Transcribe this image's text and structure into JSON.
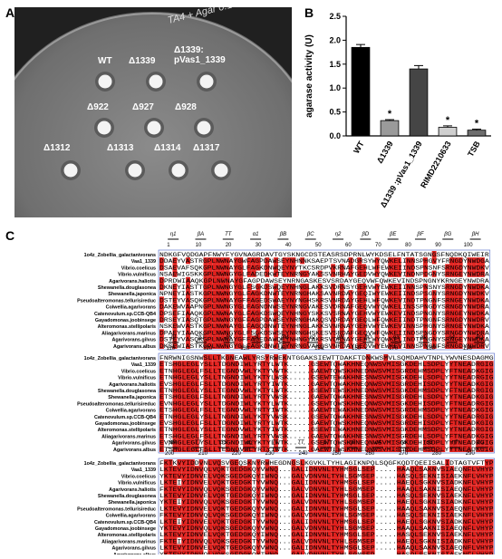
{
  "panels": {
    "a": "A",
    "b": "B",
    "c": "C"
  },
  "plate": {
    "handwriting": "TA4 + Agar 0.1% ...",
    "labels": [
      "WT",
      "Δ1339",
      "Δ1339:\npVas1_1339",
      "Δ922",
      "Δ927",
      "Δ928",
      "Δ1312",
      "Δ1313",
      "Δ1314",
      "Δ1317"
    ]
  },
  "chart_data": {
    "type": "bar",
    "categories": [
      "WT",
      "Δ1339",
      "Δ1339 :pVas1_1339",
      "RIMD2210633",
      "TSB"
    ],
    "values": [
      1.85,
      0.32,
      1.4,
      0.18,
      0.12
    ],
    "errors": [
      0.06,
      0.02,
      0.07,
      0.03,
      0.02
    ],
    "colors": [
      "#000000",
      "#9a9a9a",
      "#454545",
      "#cfcfcf",
      "#6e6e6e"
    ],
    "significance": [
      "",
      "*",
      "",
      "*",
      "*"
    ],
    "ylabel": "agarase activity (U)",
    "ylim": [
      0,
      2.5
    ],
    "yticks": [
      "0.0",
      "0.5",
      "1.0",
      "1.5",
      "2.0",
      "2.5"
    ]
  },
  "alignment": {
    "species": [
      "1o4z_Zobellia_galactanivorans",
      "Vaa1_1339",
      "Vibrio.coelicus",
      "Vibrio.vulnificus",
      "Agarivorans.haliotis",
      "Shewanella.douglasonea",
      "Shewanella.japonica",
      "Pseudoalteromonas.tellurisireduc",
      "Colwellia.agarivorans",
      "Catenovulum.sp.CCB-QB4",
      "Gayadomonas.joobinsege",
      "Alteromonas.stellipolaris",
      "Aliagarivorans.marinus",
      "Agarivorans.gilvus",
      "Agarivorans.albus"
    ],
    "blocks": [
      {
        "ruler": [
          "1",
          "10",
          "20",
          "30",
          "40",
          "50",
          "60",
          "70",
          "80",
          "90",
          "100"
        ],
        "ss": [
          "η1",
          "βA",
          "TT",
          "α1",
          "βB",
          "βC",
          "η2",
          "βD",
          "βE",
          "βF",
          "βG",
          "βH"
        ],
        "rows": [
          "NDKGFVQDGAPFNWYFYGVNAGRDAVTGYSKNGCDSTEASRSDPRNLWYKDSELFNTATSGNGSFNQDKQIWEIR",
          "DDAEYVASTRGPLNWNAYGWFAGPDAWSEYNHNNKSAEPTSVNADGRSYWYQWKELINNSPHGVYFRNGDYNWDGA",
          "DSAEVAFSQKGPLNWNAYGLFAGKDNWQEYNYTKCSRDPVKRNAFGEHLWFEWKEIINDSPNSNFSRNGDYNWDKV",
          "NSAEWIGSKKGPLNWNGYGLFADEDKWTEYNRNGYAKSSVNRHAYGEDVWYQWKEVINDNPDGNYSRNGEYNWDRA",
          "DPRDWIAAQKGPLNWNAYGFAGPDAWSEYNRNGASKESVSRDAYGEQVWFQWKEVINDSPNGNYKRNGEYNWDRA",
          "DKNEYIASTTGPLNWNGYGLFSGKDSWQEYNHNGLAKKSVDRNSYGEHVWYEWKEIINNSPNSNYSRNGDYNWDKA",
          "NPNEYIASTKGPLNWNGYGLFAGKDNWTEYNRNGHAKSAVNRDAYGEQIWYEWKEIINDSPSGNYSRNGDYNWDKV",
          "DSTEYVASQKGPLNWNAYGFFAGEDSWAEYNYNGHSKRSVNRDAYGEHLWFQWKEVINDTPNGNFSRNGEYNWDKA",
          "DAKEWVAAPNGPLNWNGYGLFAGNDNWSEYNRNGVAKESVDRNAFGEQVWYQWKELINSSPNGDYSRNGDYNWDRA",
          "DPSEFIAAQKGPLNWNAYGLFAGKDSWQEYNHNGYSKKSVSRNAYGEHVWYEWKEVINDSPNGNYSRNGEYNWDKA",
          "DRSEYIASQTGPLNWNGYGFFAGPDAWSEYNRNGHAKQSVDRDAYGEQLWFQWKEIINDTPNGNFSRNGDYNWDRV",
          "NSKEWVASTKGPLNWNAYGLFAGQDNWTEYNHNGLAKKSVNRNAYGEHVWYEWKEVINNSPHGNYSRNGEYNWDKA",
          "DPAEYIAAQKGPLNWNGYGLFSGKDSWSEYNRNGHSKESVSRDAFGEQVWFQWKEIINDSPNGDYSRNGDYNWDRA",
          "DSTEYVASQKGPLNWNAYGFFAGEDAWQEYNHNGYAKRSVDRNAYGEHLWYQWKELINDTPNGNYSRNGEYNWDKA",
          "DKSEWIASTKGPLNWNGYGLFAGKDNWTEYNRNGVAKQSVNRDAYGEQVWYEWKEVINNSPNGNFSRNGDYNWDRV"
        ]
      },
      {
        "ruler": [
          "110",
          "120",
          "130",
          "140",
          "150",
          "160",
          "170",
          "180",
          "190"
        ],
        "ss": [
          "βI",
          "βJ",
          "βK",
          "βL",
          "βM",
          "α2",
          "βN",
          "βO",
          "η3",
          "βP",
          "η4",
          "βQ"
        ],
        "rows": [
          "FNRWNIGSNWSLLTKGNEAWLYRSYRWEKNTGGAKSIEWTTDAKFTDNKWSMVLSQMDAHVTNPLYWVNESDAGMG",
          "ETSHGLEGLYSLLTDGNDIWLYRTYLWTK.....GSEWTQWAKHNEQNWSVMISGKDEHLSDPLYYTNEADRGIG",
          "ETNHGLEGLFSLLTEGNDVWLYKTYVWTK.....GAEWTQWSKHNEDNWSVMISGRDEHMSDPLYFTNEADKGIG",
          "ETNHGLEGLYSLLTNGNDIWLYKTYLWSK.....GSEWTEWAKHNESNWSVMISGKDEHLSDPLYYTNEADRGIG",
          "EVSHGLEGLFSLLTDGNDIWLYRTYIWTK.....GAEWTQWAKHNEQNWSVMISGRDEHISDPLYYTNEADKGIG",
          "ETNHGLEGLYSLLTEGNDVWLYKTYLWTK.....GSEWTEWSKHNEDNWSVMISGKDEHMSDPLYFTNEADRGIG",
          "ETSHGLEGLFSLLTNGNDIWLYRTYVWSK.....GAEWTQWAKHNESNWSVMISGRDEHLSDPLYYTNEADKGIG",
          "EVNHGLEGLYSLLTDGNDIWLYKTYLWTK.....GSEWTQWSKHNEQNWSVMISGKDEHISDPLYFTNEADRGIG",
          "ETSHGLEGLFSLLTEGNDVWLYRTYIWTK.....GAEWTEWAKHNEDNWSVMISGRDEHMSDPLYYTNEADKGIG",
          "ETNHGLEGLYSLLTNGNDIWLYKTYVWSK.....GSEWTQWAKHNESNWSVMISGKDEHLSDPLYYTNEADRGIG",
          "EVSHGLEGLFSLLTDGNDIWLYRTYLWTK.....GAEWTQWSKHNEQNWSVMISGRDEHISDPLYFTNEADKGIG",
          "ETNHGLEGLYSLLTEGNDVWLYKTYIWTK.....GSEWTEWAKHNEDNWSVMISGKDEHMSDPLYYTNEADRGIG",
          "ETSHGLEGLFSLLTNGNDIWLYRTYVWSK.....GAEWTQWAKHNESNWSVMISGRDEHLSDPLYFTNEADKGIG",
          "EVNHGLEGLYSLLTDGNDIWLYKTYLWTK.....GSEWTQWSKHNEQNWSVMISGKDEHISDPLYYTNEADRGIG",
          "ETSHGLEGLFSLLTEGNDVWLYRTYIWTK.....GAEWTEWSKHNEDNWSVMISGRDEHMSDPLYYTNEADKGIG"
        ]
      },
      {
        "ruler": [
          "200",
          "210",
          "220",
          "230",
          "240",
          "250",
          "260",
          "270",
          "280",
          "290"
        ],
        "ss": [
          "βR",
          "TT",
          "βS",
          "α3",
          "TT",
          "TT",
          "βT",
          "η5",
          "α4",
          "η6",
          "α5",
          "η7",
          "βU"
        ],
        "rows": [
          "FKTKVYIDDVNLVQSVGEQSKNYRWHEGDNGSLKGVKLTYHLAGIKNPQLSQGFKQDTQEEISALIDTAGTVFTYP",
          "LKTEVYIDNVQLVQKTGEDGKQYVWNQ...GALIDNVNLTYHMSGLSEP.....HAAQLSAKNVSIAEQNFLVHYP",
          "YKTEVYIDNVELVQKSGEDGKQYIWNQ...GALVDNVNLTYHLSGMSEP.....HASQLSEKNISIAEKNFLVHYP",
          "LKTEIYIDNVELVQKTGEDGKTYVWNQ...GALIDNVNLTYHMSGLSEP.....HAEQLSGKNVSIADKNFLVHYP",
          "FKTEVYIDNVQLVQKSGEDGKQYVWNQ...GALVDNVNLTYHLSGMSEP.....HAAQLSAKNISIAEQNFLVHYP",
          "LKTEVYIDNVELVQKTGEDGKQYIWNQ...GALIDNVNLTYHMSGLSEP.....HASQLSEKNVSIAEKNFLVHYP",
          "YKTEIYIDNVQLVQKSGEDGKTYVWNQ...GALVDNVNLTYHLSGMSEP.....HAEQLSGKNISIADKNFLVHYP",
          "LKTEVYIDNVELVQKTGEDGKQYVWNQ...GALIDNVNLTYHMSGLSEP.....HAAQLSAKNVSIAEQNFLVHYP",
          "FKTEVYIDNVQLVQKSGEDGKQYIWNQ...GALVDNVNLTYHLSGMSEP.....HASQLSEKNISIAEKNFLVHYP",
          "LKTEIYIDNVELVQKTGEDGKTYVWNQ...GALIDNVNLTYHMSGLSEP.....HAEQLSGKNVSIADKNFLVHYP",
          "YKTEVYIDNVQLVQKSGEDGKQYVWNQ...GALVDNVNLTYHLSGMSEP.....HAAQLSAKNISIAEQNFLVHYP",
          "LKTEVYIDNVELVQKTGEDGKQYIWNQ...GALIDNVNLTYHMSGLSEP.....HASQLSEKNVSIAEKNFLVHYP",
          "FKTEIYIDNVQLVQKSGEDGKTYVWNQ...GALVDNVNLTYHLSGMSEP.....HAEQLSGKNISIADKNFLVHYP",
          "LKTEVYIDNVELVQKTGEDGKQYVWNQ...GALIDNVNLTYHMSGLSEP.....HAAQLSAKNVSIAEQNFLVHYP",
          "YKTEVYIDNVQLVQKSGEDGKQYIWNQ...GALVDNVNLTYHLSGMSEP.....HASQLSEKNISIAEKNFLVHYP"
        ]
      }
    ]
  }
}
